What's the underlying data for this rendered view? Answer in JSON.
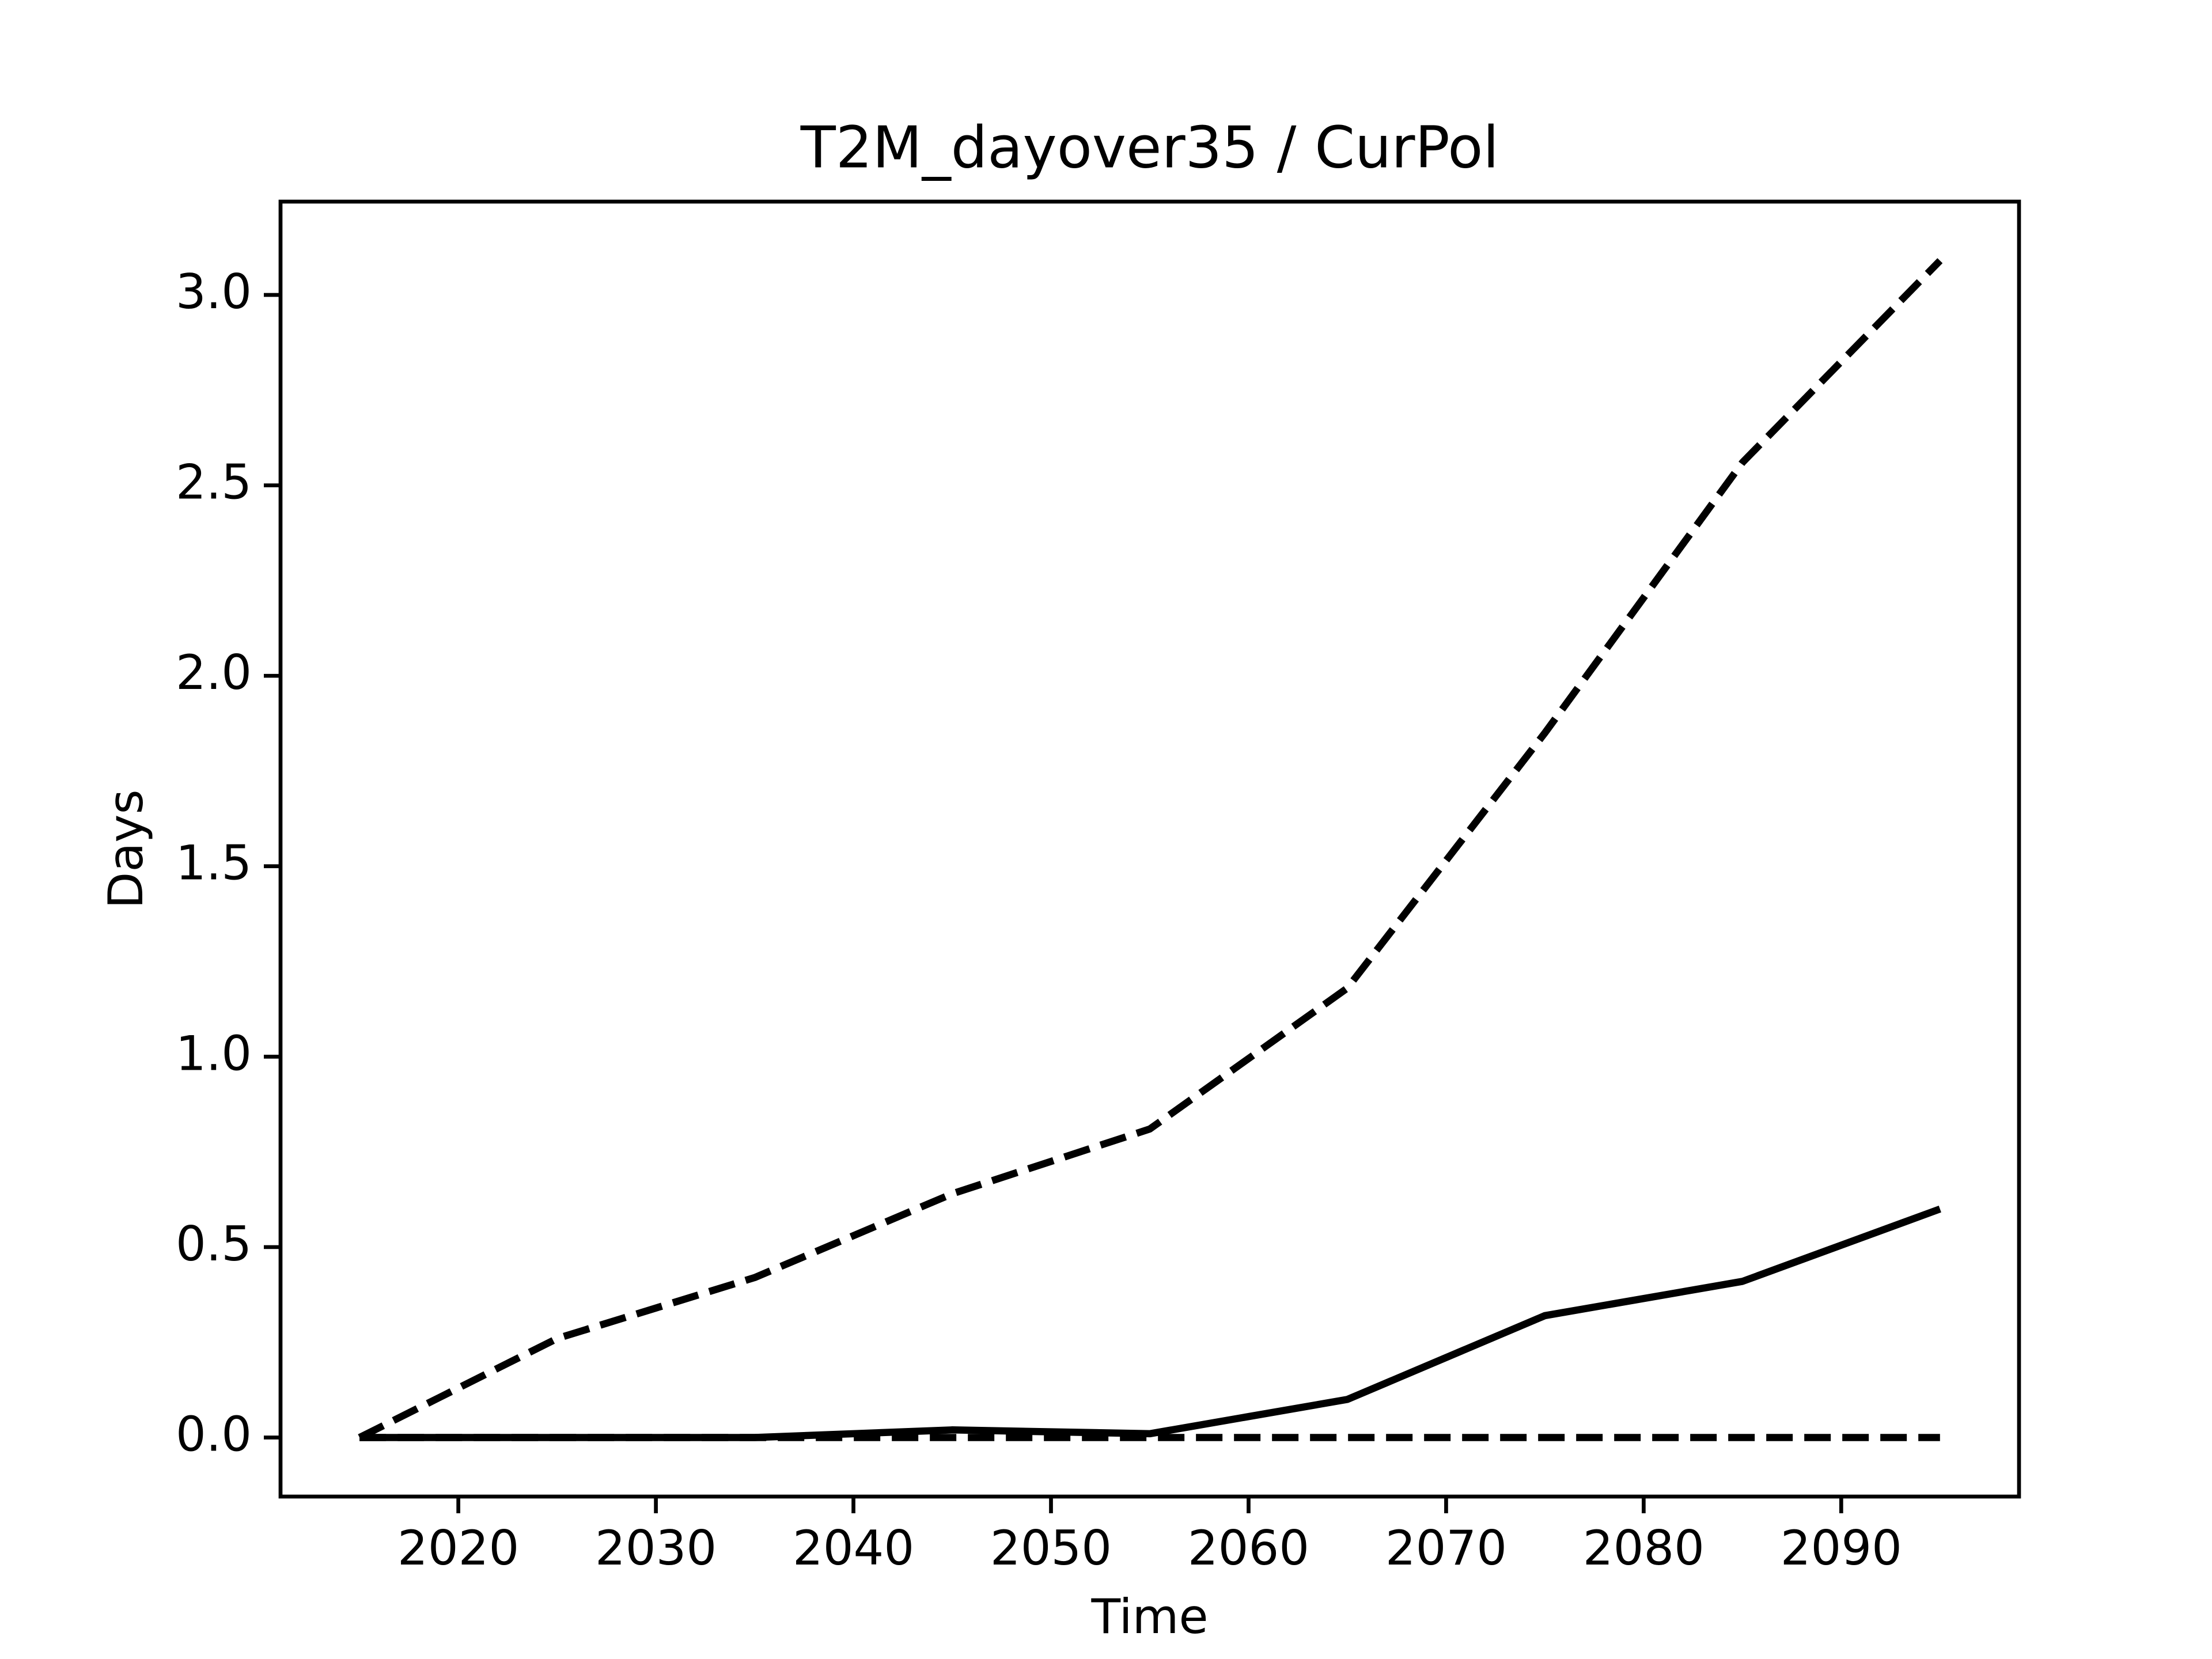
{
  "chart_data": {
    "type": "line",
    "title": "T2M_dayover35 / CurPol",
    "xlabel": "Time",
    "ylabel": "Days",
    "x": [
      2015,
      2025,
      2035,
      2045,
      2055,
      2065,
      2075,
      2085,
      2095
    ],
    "series": [
      {
        "color": "#000000",
        "dashed": true,
        "values": [
          0,
          0.26,
          0.42,
          0.64,
          0.81,
          1.18,
          1.85,
          2.56,
          3.09
        ]
      },
      {
        "color": "#000000",
        "dashed": false,
        "values": [
          0,
          0,
          0,
          0.02,
          0.01,
          0.1,
          0.32,
          0.41,
          0.6
        ]
      },
      {
        "color": "#000000",
        "dashed": true,
        "values": [
          0,
          0,
          0,
          0,
          0,
          0,
          0,
          0,
          0
        ]
      }
    ],
    "xlim": [
      2011,
      2099
    ],
    "xticks": [
      2020,
      2030,
      2040,
      2050,
      2060,
      2070,
      2080,
      2090
    ],
    "ylim": [
      -0.155,
      3.245
    ],
    "yticks": [
      {
        "value": 0,
        "label": "0.0"
      },
      0.5,
      {
        "value": 1,
        "label": "1.0"
      },
      1.5,
      {
        "value": 2,
        "label": "2.0"
      },
      2.5,
      {
        "value": 3,
        "label": "3.0"
      }
    ],
    "grid": false
  }
}
